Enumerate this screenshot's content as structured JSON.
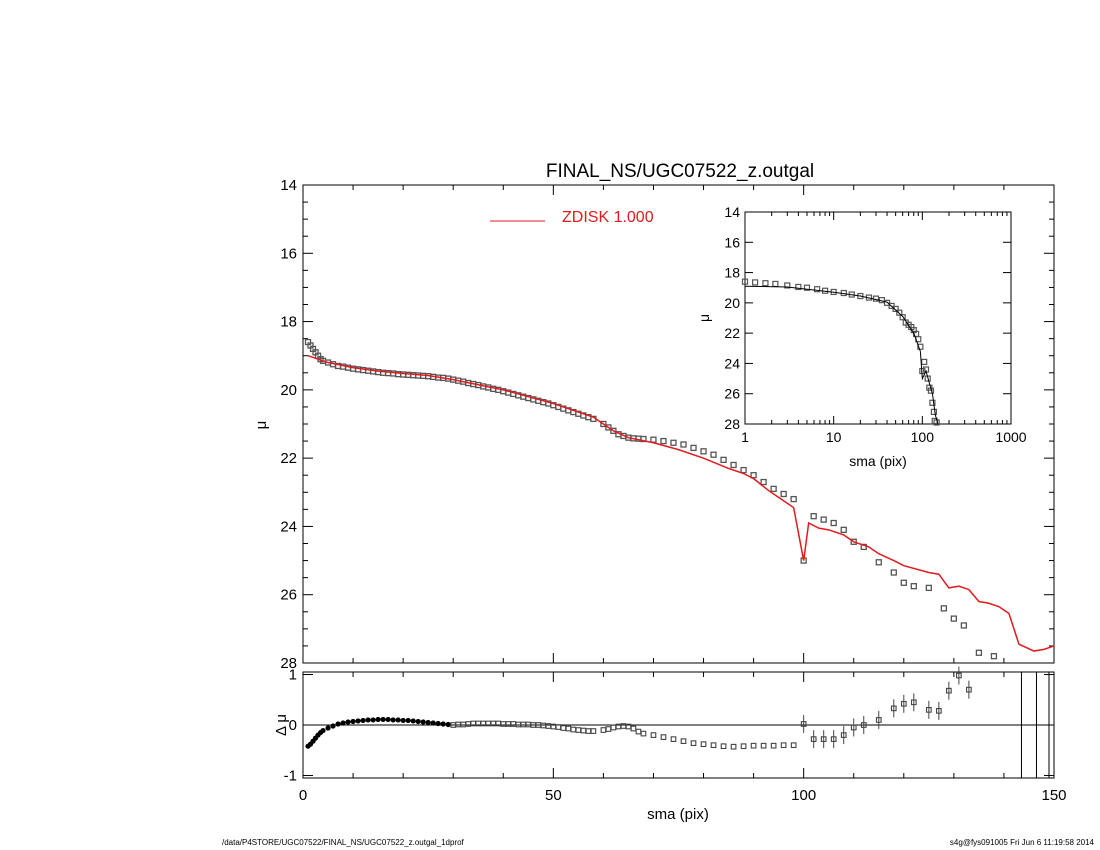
{
  "chart_data": [
    {
      "type": "scatter",
      "panel": "main",
      "title": "FINAL_NS/UGC07522_z.outgal",
      "xlabel": "",
      "ylabel": "μ",
      "xlim": [
        0,
        150
      ],
      "ylim": [
        28,
        14
      ],
      "y_inverted": true,
      "yticks": [
        "14",
        "16",
        "18",
        "20",
        "22",
        "24",
        "26",
        "28"
      ],
      "legend": {
        "position": "top-center",
        "label": "ZDISK  1.000",
        "color": "#e41a1c"
      },
      "series": [
        {
          "marker": "open-square",
          "color": "#555555",
          "points": [
            [
              1.0,
              18.6
            ],
            [
              1.5,
              18.7
            ],
            [
              2.0,
              18.8
            ],
            [
              2.5,
              18.9
            ],
            [
              3.0,
              19.0
            ],
            [
              3.5,
              19.1
            ],
            [
              4.0,
              19.15
            ],
            [
              5,
              19.2
            ],
            [
              6,
              19.25
            ],
            [
              7,
              19.3
            ],
            [
              8,
              19.32
            ],
            [
              9,
              19.35
            ],
            [
              10,
              19.38
            ],
            [
              11,
              19.4
            ],
            [
              12,
              19.42
            ],
            [
              13,
              19.44
            ],
            [
              14,
              19.46
            ],
            [
              15,
              19.48
            ],
            [
              16,
              19.5
            ],
            [
              17,
              19.51
            ],
            [
              18,
              19.52
            ],
            [
              19,
              19.54
            ],
            [
              20,
              19.55
            ],
            [
              21,
              19.56
            ],
            [
              22,
              19.57
            ],
            [
              23,
              19.58
            ],
            [
              24,
              19.59
            ],
            [
              25,
              19.6
            ],
            [
              26,
              19.62
            ],
            [
              27,
              19.64
            ],
            [
              28,
              19.65
            ],
            [
              29,
              19.67
            ],
            [
              30,
              19.7
            ],
            [
              31,
              19.73
            ],
            [
              32,
              19.76
            ],
            [
              33,
              19.8
            ],
            [
              34,
              19.83
            ],
            [
              35,
              19.86
            ],
            [
              36,
              19.9
            ],
            [
              37,
              19.93
            ],
            [
              38,
              19.97
            ],
            [
              39,
              20.0
            ],
            [
              40,
              20.04
            ],
            [
              41,
              20.08
            ],
            [
              42,
              20.12
            ],
            [
              43,
              20.16
            ],
            [
              44,
              20.2
            ],
            [
              45,
              20.24
            ],
            [
              46,
              20.28
            ],
            [
              47,
              20.32
            ],
            [
              48,
              20.36
            ],
            [
              49,
              20.4
            ],
            [
              50,
              20.45
            ],
            [
              51,
              20.5
            ],
            [
              52,
              20.55
            ],
            [
              53,
              20.6
            ],
            [
              54,
              20.65
            ],
            [
              55,
              20.7
            ],
            [
              56,
              20.75
            ],
            [
              57,
              20.8
            ],
            [
              58,
              20.85
            ],
            [
              60,
              21.0
            ],
            [
              61,
              21.1
            ],
            [
              62,
              21.2
            ],
            [
              63,
              21.3
            ],
            [
              64,
              21.35
            ],
            [
              65,
              21.4
            ],
            [
              66,
              21.42
            ],
            [
              67,
              21.43
            ],
            [
              68,
              21.44
            ],
            [
              70,
              21.46
            ],
            [
              72,
              21.5
            ],
            [
              74,
              21.55
            ],
            [
              76,
              21.6
            ],
            [
              78,
              21.7
            ],
            [
              80,
              21.8
            ],
            [
              82,
              21.9
            ],
            [
              84,
              22.05
            ],
            [
              86,
              22.2
            ],
            [
              88,
              22.35
            ],
            [
              90,
              22.5
            ],
            [
              92,
              22.7
            ],
            [
              94,
              22.9
            ],
            [
              96,
              23.05
            ],
            [
              98,
              23.2
            ],
            [
              100,
              25.0
            ],
            [
              102,
              23.7
            ],
            [
              104,
              23.8
            ],
            [
              106,
              23.9
            ],
            [
              108,
              24.1
            ],
            [
              110,
              24.45
            ],
            [
              112,
              24.6
            ],
            [
              115,
              25.05
            ],
            [
              118,
              25.35
            ],
            [
              120,
              25.65
            ],
            [
              122,
              25.75
            ],
            [
              125,
              25.8
            ],
            [
              128,
              26.4
            ],
            [
              130,
              26.7
            ],
            [
              132,
              26.9
            ],
            [
              135,
              27.7
            ],
            [
              138,
              27.8
            ]
          ]
        }
      ],
      "model": {
        "name": "ZDISK  1.000",
        "color": "#e41a1c",
        "x": [
          1,
          5,
          10,
          15,
          20,
          25,
          30,
          35,
          40,
          45,
          50,
          55,
          58,
          60,
          62,
          65,
          70,
          75,
          80,
          85,
          88,
          90,
          93,
          95,
          98,
          100,
          101,
          103,
          105,
          108,
          110,
          113,
          115,
          118,
          120,
          125,
          127,
          129,
          131,
          133,
          135,
          137,
          139,
          141,
          143,
          146,
          148,
          150
        ],
        "y": [
          19.0,
          19.2,
          19.35,
          19.45,
          19.52,
          19.58,
          19.7,
          19.85,
          20.0,
          20.2,
          20.4,
          20.65,
          20.8,
          21.0,
          21.2,
          21.4,
          21.55,
          21.75,
          22.0,
          22.3,
          22.45,
          22.6,
          22.95,
          23.15,
          23.45,
          25.0,
          23.9,
          24.05,
          24.1,
          24.25,
          24.45,
          24.6,
          24.8,
          25.0,
          25.15,
          25.35,
          25.4,
          25.8,
          25.75,
          25.85,
          26.2,
          26.25,
          26.35,
          26.55,
          27.45,
          27.65,
          27.6,
          27.5
        ]
      }
    },
    {
      "type": "scatter",
      "panel": "inset",
      "xlabel": "sma (pix)",
      "ylabel": "μ",
      "xscale": "log",
      "xlim": [
        1,
        1000
      ],
      "ylim": [
        28,
        14
      ],
      "y_inverted": true,
      "xticks": [
        "1",
        "10",
        "100",
        "1000"
      ],
      "yticks": [
        "14",
        "16",
        "18",
        "20",
        "22",
        "24",
        "26",
        "28"
      ],
      "series": [
        {
          "marker": "open-square",
          "color": "#555555",
          "points": [
            [
              1.0,
              18.6
            ],
            [
              1.3,
              18.65
            ],
            [
              1.7,
              18.7
            ],
            [
              2.2,
              18.75
            ],
            [
              3.0,
              18.85
            ],
            [
              4.0,
              18.95
            ],
            [
              5.0,
              19.0
            ],
            [
              6.5,
              19.1
            ],
            [
              8,
              19.2
            ],
            [
              10,
              19.28
            ],
            [
              13,
              19.35
            ],
            [
              16,
              19.45
            ],
            [
              20,
              19.55
            ],
            [
              25,
              19.65
            ],
            [
              30,
              19.72
            ],
            [
              35,
              19.82
            ],
            [
              40,
              20.0
            ],
            [
              45,
              20.2
            ],
            [
              50,
              20.4
            ],
            [
              55,
              20.65
            ],
            [
              60,
              20.95
            ],
            [
              65,
              21.3
            ],
            [
              70,
              21.45
            ],
            [
              75,
              21.6
            ],
            [
              80,
              21.8
            ],
            [
              85,
              22.05
            ],
            [
              90,
              22.4
            ],
            [
              95,
              22.9
            ],
            [
              100,
              24.5
            ],
            [
              105,
              23.9
            ],
            [
              110,
              24.4
            ],
            [
              115,
              25.0
            ],
            [
              120,
              25.6
            ],
            [
              125,
              25.8
            ],
            [
              130,
              26.6
            ],
            [
              135,
              27.2
            ],
            [
              138,
              27.8
            ],
            [
              145,
              27.9
            ]
          ]
        }
      ],
      "model_color": "#000000",
      "model": {
        "x": [
          1,
          3,
          10,
          20,
          40,
          60,
          80,
          95,
          100,
          110,
          120,
          130,
          140,
          150
        ],
        "y": [
          18.9,
          18.95,
          19.3,
          19.55,
          19.95,
          20.9,
          22.0,
          23.2,
          25.0,
          24.5,
          25.3,
          26.0,
          27.4,
          28.0
        ]
      }
    },
    {
      "type": "scatter",
      "panel": "residual",
      "xlabel": "sma (pix)",
      "ylabel": "Δ μ",
      "xlim": [
        0,
        150
      ],
      "ylim": [
        -1.05,
        1.05
      ],
      "xticks": [
        "0",
        "50",
        "100",
        "150"
      ],
      "yticks": [
        "-1",
        "0",
        "1"
      ],
      "points": [
        [
          1,
          -0.42
        ],
        [
          1.5,
          -0.38
        ],
        [
          2,
          -0.32
        ],
        [
          2.5,
          -0.26
        ],
        [
          3,
          -0.2
        ],
        [
          3.5,
          -0.15
        ],
        [
          4,
          -0.11
        ],
        [
          5,
          -0.06
        ],
        [
          6,
          -0.02
        ],
        [
          7,
          0.02
        ],
        [
          8,
          0.04
        ],
        [
          9,
          0.06
        ],
        [
          10,
          0.07
        ],
        [
          11,
          0.08
        ],
        [
          12,
          0.09
        ],
        [
          13,
          0.1
        ],
        [
          14,
          0.1
        ],
        [
          15,
          0.11
        ],
        [
          16,
          0.11
        ],
        [
          17,
          0.11
        ],
        [
          18,
          0.1
        ],
        [
          19,
          0.1
        ],
        [
          20,
          0.09
        ],
        [
          21,
          0.09
        ],
        [
          22,
          0.08
        ],
        [
          23,
          0.07
        ],
        [
          24,
          0.06
        ],
        [
          25,
          0.05
        ],
        [
          26,
          0.04
        ],
        [
          27,
          0.03
        ],
        [
          28,
          0.02
        ],
        [
          29,
          0.01
        ],
        [
          30,
          0.0
        ],
        [
          31,
          0.01
        ],
        [
          32,
          0.01
        ],
        [
          33,
          0.02
        ],
        [
          34,
          0.03
        ],
        [
          35,
          0.03
        ],
        [
          36,
          0.03
        ],
        [
          37,
          0.03
        ],
        [
          38,
          0.03
        ],
        [
          39,
          0.03
        ],
        [
          40,
          0.02
        ],
        [
          41,
          0.02
        ],
        [
          42,
          0.02
        ],
        [
          43,
          0.01
        ],
        [
          44,
          0.01
        ],
        [
          45,
          0.01
        ],
        [
          46,
          0.0
        ],
        [
          47,
          0.0
        ],
        [
          48,
          -0.01
        ],
        [
          49,
          -0.02
        ],
        [
          50,
          -0.03
        ],
        [
          51,
          -0.04
        ],
        [
          52,
          -0.06
        ],
        [
          53,
          -0.07
        ],
        [
          54,
          -0.09
        ],
        [
          55,
          -0.1
        ],
        [
          56,
          -0.11
        ],
        [
          57,
          -0.12
        ],
        [
          58,
          -0.12
        ],
        [
          60,
          -0.1
        ],
        [
          61,
          -0.08
        ],
        [
          62,
          -0.05
        ],
        [
          63,
          -0.03
        ],
        [
          64,
          -0.02
        ],
        [
          65,
          -0.03
        ],
        [
          66,
          -0.07
        ],
        [
          67,
          -0.13
        ],
        [
          68,
          -0.17
        ],
        [
          70,
          -0.2
        ],
        [
          72,
          -0.24
        ],
        [
          74,
          -0.28
        ],
        [
          76,
          -0.32
        ],
        [
          78,
          -0.36
        ],
        [
          80,
          -0.38
        ],
        [
          82,
          -0.4
        ],
        [
          84,
          -0.42
        ],
        [
          86,
          -0.43
        ],
        [
          88,
          -0.42
        ],
        [
          90,
          -0.41
        ],
        [
          92,
          -0.41
        ],
        [
          94,
          -0.41
        ],
        [
          96,
          -0.4
        ],
        [
          98,
          -0.4
        ],
        [
          100,
          0.02
        ],
        [
          102,
          -0.28
        ],
        [
          104,
          -0.28
        ],
        [
          106,
          -0.28
        ],
        [
          108,
          -0.2
        ],
        [
          110,
          -0.05
        ],
        [
          112,
          0.0
        ],
        [
          115,
          0.1
        ],
        [
          118,
          0.33
        ],
        [
          120,
          0.42
        ],
        [
          122,
          0.45
        ],
        [
          125,
          0.3
        ],
        [
          127,
          0.28
        ],
        [
          129,
          0.68
        ],
        [
          131,
          0.98
        ],
        [
          133,
          0.7
        ]
      ],
      "vlines_x": [
        143.5,
        146.5,
        149
      ]
    }
  ],
  "footer": {
    "left": "/data/P4STORE/UGC07522/FINAL_NS/UGC07522_z.outgal_1dprof",
    "right": "s4g@fys091005  Fri Jun  6 11:19:58 2014"
  }
}
